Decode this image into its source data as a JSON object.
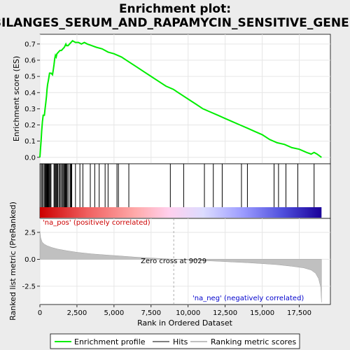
{
  "chart_data": {
    "type": "line",
    "title_line1": "Enrichment plot:",
    "title_line2": "BILANGES_SERUM_AND_RAPAMYCIN_SENSITIVE_GENES",
    "top_panel": {
      "ylabel": "Enrichment score (ES)",
      "ylim": [
        -0.04,
        0.76
      ],
      "yticks": [
        0.0,
        0.1,
        0.2,
        0.3,
        0.4,
        0.5,
        0.6,
        0.7
      ],
      "ytick_labels": [
        "0.0",
        "0.1",
        "0.2",
        "0.3",
        "0.4",
        "0.5",
        "0.6",
        "0.7"
      ],
      "series_name": "Enrichment profile",
      "line_color": "#00ee00",
      "points": [
        [
          0,
          0.0
        ],
        [
          40,
          0.05
        ],
        [
          80,
          0.1
        ],
        [
          120,
          0.16
        ],
        [
          170,
          0.22
        ],
        [
          220,
          0.26
        ],
        [
          300,
          0.26
        ],
        [
          350,
          0.3
        ],
        [
          400,
          0.34
        ],
        [
          450,
          0.38
        ],
        [
          480,
          0.42
        ],
        [
          520,
          0.45
        ],
        [
          560,
          0.47
        ],
        [
          600,
          0.49
        ],
        [
          650,
          0.52
        ],
        [
          750,
          0.52
        ],
        [
          850,
          0.51
        ],
        [
          900,
          0.54
        ],
        [
          950,
          0.57
        ],
        [
          1000,
          0.61
        ],
        [
          1050,
          0.63
        ],
        [
          1100,
          0.62
        ],
        [
          1150,
          0.64
        ],
        [
          1250,
          0.65
        ],
        [
          1350,
          0.66
        ],
        [
          1450,
          0.66
        ],
        [
          1550,
          0.67
        ],
        [
          1650,
          0.68
        ],
        [
          1750,
          0.7
        ],
        [
          1800,
          0.69
        ],
        [
          1900,
          0.69
        ],
        [
          2000,
          0.7
        ],
        [
          2100,
          0.71
        ],
        [
          2200,
          0.72
        ],
        [
          2400,
          0.71
        ],
        [
          2600,
          0.71
        ],
        [
          2800,
          0.7
        ],
        [
          3000,
          0.71
        ],
        [
          3200,
          0.7
        ],
        [
          3500,
          0.69
        ],
        [
          3800,
          0.68
        ],
        [
          4200,
          0.67
        ],
        [
          4600,
          0.65
        ],
        [
          5000,
          0.64
        ],
        [
          5500,
          0.62
        ],
        [
          6000,
          0.59
        ],
        [
          6500,
          0.56
        ],
        [
          7000,
          0.53
        ],
        [
          7500,
          0.5
        ],
        [
          8000,
          0.47
        ],
        [
          8500,
          0.44
        ],
        [
          9000,
          0.42
        ],
        [
          9500,
          0.39
        ],
        [
          10000,
          0.36
        ],
        [
          10500,
          0.33
        ],
        [
          11000,
          0.3
        ],
        [
          11500,
          0.28
        ],
        [
          12000,
          0.26
        ],
        [
          12500,
          0.24
        ],
        [
          13000,
          0.22
        ],
        [
          13500,
          0.2
        ],
        [
          14000,
          0.18
        ],
        [
          14500,
          0.16
        ],
        [
          15000,
          0.14
        ],
        [
          15500,
          0.11
        ],
        [
          16000,
          0.09
        ],
        [
          16500,
          0.08
        ],
        [
          17000,
          0.06
        ],
        [
          17500,
          0.05
        ],
        [
          18000,
          0.03
        ],
        [
          18300,
          0.02
        ],
        [
          18500,
          0.03
        ],
        [
          18700,
          0.02
        ],
        [
          19000,
          0.0
        ]
      ]
    },
    "hits_panel": {
      "positions": [
        80,
        150,
        220,
        300,
        360,
        400,
        440,
        480,
        520,
        560,
        600,
        650,
        700,
        750,
        950,
        1000,
        1050,
        1100,
        1150,
        1200,
        1280,
        1350,
        1420,
        1500,
        1560,
        1620,
        1680,
        1720,
        1760,
        1800,
        1850,
        1950,
        2050,
        2100,
        2150,
        2400,
        2700,
        2900,
        3400,
        3700,
        4000,
        4400,
        4600,
        5200,
        5300,
        6000,
        8800,
        9700,
        11100,
        11700,
        12300,
        13600,
        14000,
        15800,
        16100,
        16600,
        17400,
        18500
      ],
      "gradient_stops": [
        "#cc0000",
        "#ee5555",
        "#ffaaaa",
        "#ffccee",
        "#ddddff",
        "#9999ff",
        "#3333cc",
        "#1a0099"
      ]
    },
    "bottom_panel": {
      "ylabel": "Ranked list metric (PreRanked)",
      "ylim": [
        -4.2,
        3.8
      ],
      "yticks": [
        2.5,
        0.0,
        -2.5
      ],
      "ytick_labels": [
        "2.5",
        "0.0",
        "-2.5"
      ],
      "fill_color": "#c0c0c0",
      "points": [
        [
          0,
          2.6
        ],
        [
          50,
          2.0
        ],
        [
          150,
          1.6
        ],
        [
          300,
          1.4
        ],
        [
          500,
          1.25
        ],
        [
          800,
          1.1
        ],
        [
          1200,
          0.95
        ],
        [
          1800,
          0.8
        ],
        [
          2500,
          0.65
        ],
        [
          3500,
          0.5
        ],
        [
          4500,
          0.4
        ],
        [
          5500,
          0.3
        ],
        [
          6500,
          0.2
        ],
        [
          7500,
          0.12
        ],
        [
          8500,
          0.05
        ],
        [
          9029,
          0.0
        ],
        [
          10000,
          -0.06
        ],
        [
          11000,
          -0.12
        ],
        [
          12000,
          -0.18
        ],
        [
          13000,
          -0.25
        ],
        [
          14000,
          -0.32
        ],
        [
          15000,
          -0.4
        ],
        [
          16000,
          -0.5
        ],
        [
          17000,
          -0.65
        ],
        [
          17800,
          -0.8
        ],
        [
          18300,
          -1.0
        ],
        [
          18600,
          -1.3
        ],
        [
          18800,
          -1.8
        ],
        [
          18950,
          -2.6
        ],
        [
          19000,
          -4.0
        ]
      ],
      "pos_label": "'na_pos' (positively correlated)",
      "neg_label": "'na_neg' (negatively correlated)",
      "zero_cross_label": "Zero cross at 9029",
      "zero_cross": 9029
    },
    "xlabel": "Rank in Ordered Dataset",
    "xlim": [
      0,
      19600
    ],
    "xticks": [
      0,
      2500,
      5000,
      7500,
      10000,
      12500,
      15000,
      17500
    ],
    "xtick_labels": [
      "0",
      "2,500",
      "5,000",
      "7,500",
      "10,000",
      "12,500",
      "15,000",
      "17,500"
    ],
    "n_genes": 19000,
    "legend": [
      {
        "label": "Enrichment profile",
        "color": "#00ee00"
      },
      {
        "label": "Hits",
        "color": "#000000"
      },
      {
        "label": "Ranking metric scores",
        "color": "#c0c0c0"
      }
    ],
    "legend_placement": "bottom",
    "grid": true
  }
}
